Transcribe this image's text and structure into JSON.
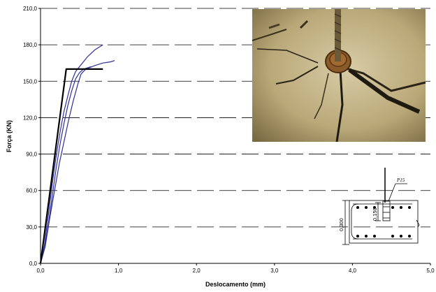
{
  "chart_data": {
    "type": "line",
    "xlabel": "Deslocamento (mm)",
    "ylabel": "Força (KN)",
    "xlim": [
      0,
      5
    ],
    "ylim": [
      0,
      210
    ],
    "x_ticks": [
      "0,0",
      "1,0",
      "2,0",
      "3,0",
      "4,0",
      "5,0"
    ],
    "y_ticks": [
      "0,0",
      "30,0",
      "60,0",
      "90,0",
      "120,0",
      "150,0",
      "180,0",
      "210,0"
    ],
    "grid": "horizontal dashed",
    "series": [
      {
        "color": "#2e2e9a",
        "points": [
          [
            0,
            0
          ],
          [
            0.05,
            15
          ],
          [
            0.1,
            40
          ],
          [
            0.15,
            65
          ],
          [
            0.2,
            88
          ],
          [
            0.25,
            108
          ],
          [
            0.3,
            125
          ],
          [
            0.35,
            138
          ],
          [
            0.4,
            150
          ],
          [
            0.45,
            158
          ],
          [
            0.5,
            162
          ],
          [
            0.55,
            166
          ],
          [
            0.6,
            170
          ],
          [
            0.65,
            173
          ],
          [
            0.7,
            176
          ],
          [
            0.75,
            178
          ],
          [
            0.8,
            180
          ]
        ]
      },
      {
        "color": "#2e2e9a",
        "points": [
          [
            0,
            0
          ],
          [
            0.06,
            14
          ],
          [
            0.12,
            38
          ],
          [
            0.18,
            60
          ],
          [
            0.24,
            82
          ],
          [
            0.3,
            100
          ],
          [
            0.36,
            118
          ],
          [
            0.42,
            134
          ],
          [
            0.48,
            148
          ],
          [
            0.52,
            156
          ],
          [
            0.58,
            160
          ],
          [
            0.7,
            163
          ],
          [
            0.8,
            165
          ],
          [
            0.9,
            166
          ],
          [
            0.95,
            167
          ]
        ]
      },
      {
        "color": "#2e2e9a",
        "points": [
          [
            0,
            0
          ],
          [
            0.05,
            12
          ],
          [
            0.1,
            32
          ],
          [
            0.15,
            55
          ],
          [
            0.2,
            78
          ],
          [
            0.25,
            98
          ],
          [
            0.3,
            115
          ],
          [
            0.35,
            130
          ],
          [
            0.4,
            142
          ],
          [
            0.45,
            152
          ],
          [
            0.5,
            157
          ],
          [
            0.55,
            160
          ],
          [
            0.6,
            161
          ],
          [
            0.65,
            162
          ]
        ]
      },
      {
        "color": "#000000",
        "points": [
          [
            0,
            0
          ],
          [
            0.33,
            160
          ],
          [
            0.8,
            160
          ]
        ]
      }
    ]
  },
  "inset": {
    "detail_labels": [
      "P15",
      "0,150",
      "0,300"
    ]
  }
}
